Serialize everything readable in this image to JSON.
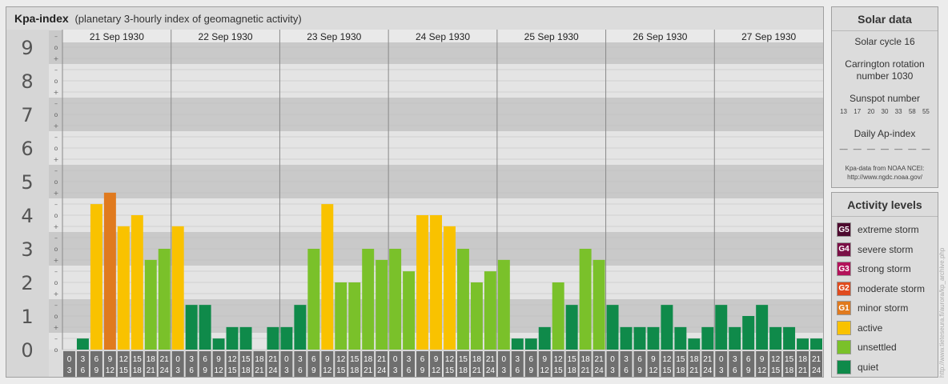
{
  "title": {
    "main": "Kpa-index",
    "subtitle": "(planetary 3-hourly index of geomagnetic activity)"
  },
  "chart_data": {
    "type": "bar",
    "y_ticks": [
      "0",
      "1",
      "2",
      "3",
      "4",
      "5",
      "6",
      "7",
      "8",
      "9"
    ],
    "sub_ticks": [
      "+",
      "o",
      "–"
    ],
    "ylim": [
      0,
      9
    ],
    "days": [
      "21 Sep 1930",
      "22 Sep 1930",
      "23 Sep 1930",
      "24 Sep 1930",
      "25 Sep 1930",
      "26 Sep 1930",
      "27 Sep 1930"
    ],
    "hour_labels": [
      [
        "0",
        "3"
      ],
      [
        "3",
        "6"
      ],
      [
        "6",
        "9"
      ],
      [
        "9",
        "12"
      ],
      [
        "12",
        "15"
      ],
      [
        "15",
        "18"
      ],
      [
        "18",
        "21"
      ],
      [
        "21",
        "24"
      ]
    ],
    "values": [
      0,
      0.33,
      4.33,
      4.67,
      3.67,
      4,
      2.67,
      3,
      3.67,
      1.33,
      1.33,
      0.33,
      0.67,
      0.67,
      0,
      0.67,
      0.67,
      1.33,
      3,
      4.33,
      2,
      2,
      3,
      2.67,
      3,
      2.33,
      4,
      4,
      3.67,
      3,
      2,
      2.33,
      2.67,
      0.33,
      0.33,
      0.67,
      2,
      1.33,
      3,
      2.67,
      1.33,
      0.67,
      0.67,
      0.67,
      1.33,
      0.67,
      0.33,
      0.67,
      1.33,
      0.67,
      1,
      1.33,
      0.67,
      0.67,
      0.33,
      0.33
    ],
    "level_colors": {
      "quiet": "#0f8a4a",
      "unsettled": "#7ac12a",
      "active": "#f9c200",
      "g1": "#e07a1e",
      "g2": "#e04b1e",
      "g3": "#b3125a",
      "g4": "#7a0f45",
      "g5": "#4d0a2e"
    }
  },
  "solar": {
    "title": "Solar data",
    "cycle": "Solar cycle 16",
    "carrington_line1": "Carrington rotation",
    "carrington_line2": "number 1030",
    "sunspot_label": "Sunspot number",
    "sunspots": [
      "13",
      "17",
      "20",
      "30",
      "33",
      "58",
      "55"
    ],
    "ap_label": "Daily Ap-index",
    "ap_values": [
      "––",
      "––",
      "––",
      "––",
      "––",
      "––",
      "––"
    ],
    "source_line1": "Kpa-data from NOAA NCEI:",
    "source_line2": "http://www.ngdc.noaa.gov/"
  },
  "levels": {
    "title": "Activity levels",
    "items": [
      {
        "badge": "G5",
        "label": "extreme storm",
        "color": "#4d0a2e"
      },
      {
        "badge": "G4",
        "label": "severe storm",
        "color": "#7a0f45"
      },
      {
        "badge": "G3",
        "label": "strong storm",
        "color": "#b3125a"
      },
      {
        "badge": "G2",
        "label": "moderate storm",
        "color": "#e04b1e"
      },
      {
        "badge": "G1",
        "label": "minor storm",
        "color": "#e07a1e"
      },
      {
        "badge": "",
        "label": "active",
        "color": "#f9c200"
      },
      {
        "badge": "",
        "label": "unsettled",
        "color": "#7ac12a"
      },
      {
        "badge": "",
        "label": "quiet",
        "color": "#0f8a4a"
      }
    ]
  },
  "side_url": "http://www.tieteseura.fi/aurora/kp_archive.php"
}
